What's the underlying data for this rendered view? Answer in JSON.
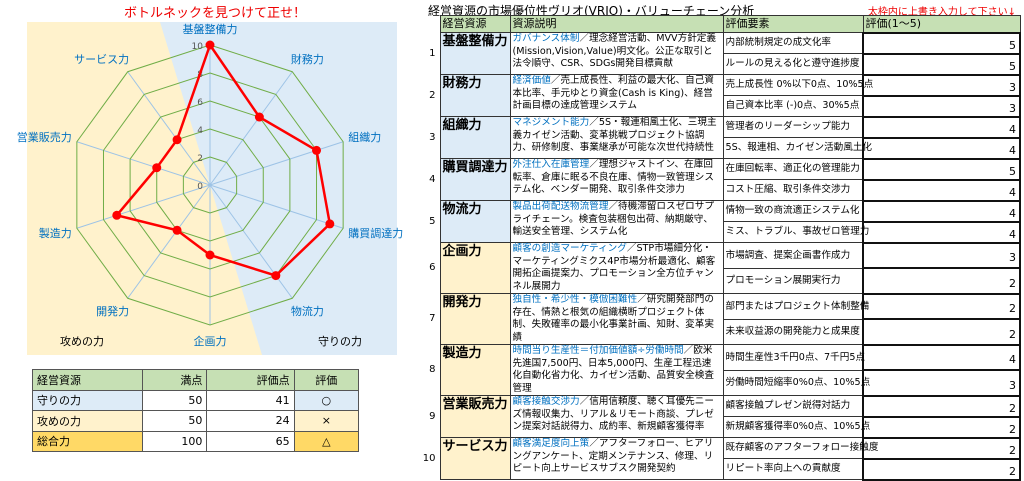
{
  "chart_title": "ボトルネックを見つけて正せ！",
  "chart_data": {
    "type": "radar",
    "title": "ボトルネックを見つけて正せ！",
    "categories": [
      "基盤整備力",
      "財務力",
      "組織力",
      "購買調達力",
      "物流力",
      "企画力",
      "開発力",
      "製造力",
      "営業販売力",
      "サービス力"
    ],
    "values": [
      10,
      6,
      8,
      9,
      8,
      5,
      4,
      7,
      4,
      4
    ],
    "rlim": [
      0,
      10
    ],
    "ticks": [
      "0",
      "2",
      "4",
      "6",
      "8",
      "10"
    ],
    "region_labels": {
      "attack": "攻めの力",
      "defense": "守りの力"
    },
    "colors": {
      "series": "#ff0000",
      "grid": "#70ad47",
      "spoke": "#9dc3e6",
      "attack_bg": "#fff2cc",
      "defense_bg": "#ddebf7",
      "label": "#0070c0"
    }
  },
  "summary": {
    "headers": [
      "経営資源",
      "満点",
      "評価点",
      "評価"
    ],
    "rows": [
      {
        "name": "守りの力",
        "full": "50",
        "score": "41",
        "eval": "○"
      },
      {
        "name": "攻めの力",
        "full": "50",
        "score": "24",
        "eval": "×"
      },
      {
        "name": "総合力",
        "full": "100",
        "score": "65",
        "eval": "△"
      }
    ]
  },
  "analysis": {
    "title": "経営資源の市場優位性ヴリオ(VRIO)・バリューチェーン分析",
    "note": "太枠内に上書き入力して下さい↓",
    "headers": [
      "経営資源",
      "資源説明",
      "評価要素",
      "評価(1～5)"
    ],
    "rows": [
      {
        "no": "1",
        "name": "基盤整備力",
        "key": "ガバナンス体制",
        "desc": "／理念経営活動、MVV方針定義(Mission,Vision,Value)明文化。公正な取引と法令順守、CSR、SDGs開発目標貢献",
        "items": [
          "内部統制規定の成文化率",
          "ルールの見える化と遵守進捗度"
        ],
        "scores": [
          "5",
          "5"
        ],
        "group": "b"
      },
      {
        "no": "2",
        "name": "財務力",
        "key": "経済価値",
        "desc": "／売上成長性、利益の最大化、自己資本比率、手元ゆとり資金(Cash is King)、経営計画目標の達成管理システム",
        "items": [
          "売上成長性 0%以下0点、10%5点",
          "自己資本比率 (-)0点、30%5点"
        ],
        "scores": [
          "3",
          "3"
        ],
        "group": "b"
      },
      {
        "no": "3",
        "name": "組織力",
        "key": "マネジメント能力",
        "desc": "／5S・報連相風土化、三現主義カイゼン活動、変革挑戦プロジェクト協調力、研修制度、事業継承が可能な次世代持続性",
        "items": [
          "管理者のリーダーシップ能力",
          "5S、報連相、カイゼン活動風土化"
        ],
        "scores": [
          "4",
          "4"
        ],
        "group": "b"
      },
      {
        "no": "4",
        "name": "購買調達力",
        "key": "外注仕入在庫管理",
        "desc": "／理想ジャストイン、在庫回転率、倉庫に眠る不良在庫、情物一致管理システム化、ベンダー開発、取引条件交渉力",
        "items": [
          "在庫回転率、適正化の管理能力",
          "コスト圧縮、取引条件交渉力"
        ],
        "scores": [
          "5",
          "4"
        ],
        "group": "b"
      },
      {
        "no": "5",
        "name": "物流力",
        "key": "製品出荷配送物流管理",
        "desc": "／待機滞留ロスゼロサプライチェーン。検査包装梱包出荷、納期厳守、輸送安全管理、システム化",
        "items": [
          "情物一致の商流適正システム化",
          "ミス、トラブル、事故ゼロ管理力"
        ],
        "scores": [
          "4",
          "4"
        ],
        "group": "b"
      },
      {
        "no": "6",
        "name": "企画力",
        "key": "顧客の創造マーケティング",
        "desc": "／STP市場細分化・マーケティングミクス4P市場分析最適化、顧客開拓企画提案力、プロモーション全方位チャンネル展開力",
        "items": [
          "市場調査、提案企画書作成力",
          "プロモーション展開実行力"
        ],
        "scores": [
          "3",
          "2"
        ],
        "group": "y"
      },
      {
        "no": "7",
        "name": "開発力",
        "key": "独自性・希少性・模倣困難性",
        "desc": "／研究開発部門の存在、情熱と根気の組織横断プロジェクト体制、失敗確率の最小化事業計画、知財、変革実績",
        "items": [
          "部門またはプロジェクト体制整備",
          "未来収益源の開発能力と成果度"
        ],
        "scores": [
          "2",
          "2"
        ],
        "group": "y"
      },
      {
        "no": "8",
        "name": "製造力",
        "key": "時間当り生産性＝付加価値額÷労働時間",
        "desc": "／欧米先進国7,500円、日本5,000円、生産工程迅速化自動化省力化、カイゼン活動、品質安全検査管理",
        "items": [
          "時間生産性3千円0点、7千円5点",
          "労働時間短縮率0%0点、10%5点"
        ],
        "scores": [
          "4",
          "3"
        ],
        "group": "y"
      },
      {
        "no": "9",
        "name": "営業販売力",
        "key": "顧客接触交渉力",
        "desc": "／信用信頼度、聴く耳優先ニーズ情報収集力、リアル＆リモート商談、プレゼン提案対話説得力、成約率、新規顧客獲得率",
        "items": [
          "顧客接触プレゼン説得対話力",
          "新規顧客獲得率0%0点、10%5点"
        ],
        "scores": [
          "2",
          "2"
        ],
        "group": "y"
      },
      {
        "no": "10",
        "name": "サービス力",
        "key": "顧客満足度向上策",
        "desc": "／アフターフォロー、ヒアリングアンケート、定期メンテナンス、修理、リピート向上サービスサブスク開発契約",
        "items": [
          "既存顧客のアフターフォロー接触度",
          "リピート率向上への貢献度"
        ],
        "scores": [
          "2",
          "2"
        ],
        "group": "y"
      }
    ]
  }
}
